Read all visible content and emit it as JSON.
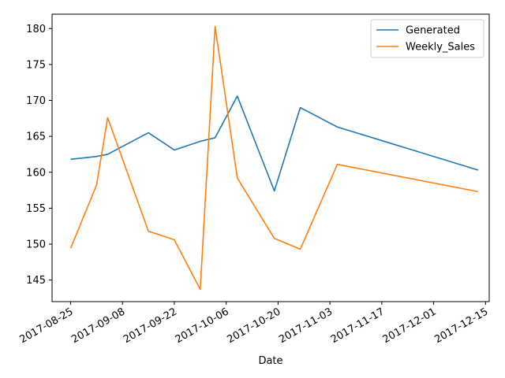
{
  "chart_data": {
    "type": "line",
    "title": "",
    "xlabel": "Date",
    "ylabel": "",
    "x_tick_labels": [
      "2017-08-25",
      "2017-09-08",
      "2017-09-22",
      "2017-10-06",
      "2017-10-20",
      "2017-11-03",
      "2017-11-17",
      "2017-12-01",
      "2017-12-15"
    ],
    "y_ticks": [
      145,
      150,
      155,
      160,
      165,
      170,
      175,
      180
    ],
    "xlim": [
      "2017-08-20",
      "2017-12-16"
    ],
    "ylim": [
      142.0,
      182.0
    ],
    "grid": false,
    "legend_position": "upper-right",
    "series": [
      {
        "name": "Generated",
        "color": "#1f77b4",
        "points": [
          {
            "x": "2017-08-25",
            "y": 161.8
          },
          {
            "x": "2017-09-01",
            "y": 162.2
          },
          {
            "x": "2017-09-04",
            "y": 162.5
          },
          {
            "x": "2017-09-15",
            "y": 165.5
          },
          {
            "x": "2017-09-22",
            "y": 163.1
          },
          {
            "x": "2017-09-29",
            "y": 164.3
          },
          {
            "x": "2017-10-03",
            "y": 164.8
          },
          {
            "x": "2017-10-09",
            "y": 170.6
          },
          {
            "x": "2017-10-19",
            "y": 157.4
          },
          {
            "x": "2017-10-26",
            "y": 169.0
          },
          {
            "x": "2017-11-05",
            "y": 166.3
          },
          {
            "x": "2017-12-13",
            "y": 160.3
          }
        ]
      },
      {
        "name": "Weekly_Sales",
        "color": "#ff7f0e",
        "points": [
          {
            "x": "2017-08-25",
            "y": 149.4
          },
          {
            "x": "2017-09-01",
            "y": 158.2
          },
          {
            "x": "2017-09-04",
            "y": 167.6
          },
          {
            "x": "2017-09-15",
            "y": 151.8
          },
          {
            "x": "2017-09-22",
            "y": 150.6
          },
          {
            "x": "2017-09-29",
            "y": 143.7
          },
          {
            "x": "2017-10-03",
            "y": 180.3
          },
          {
            "x": "2017-10-09",
            "y": 159.2
          },
          {
            "x": "2017-10-19",
            "y": 150.8
          },
          {
            "x": "2017-10-26",
            "y": 149.3
          },
          {
            "x": "2017-11-05",
            "y": 161.1
          },
          {
            "x": "2017-12-13",
            "y": 157.3
          }
        ]
      }
    ]
  }
}
